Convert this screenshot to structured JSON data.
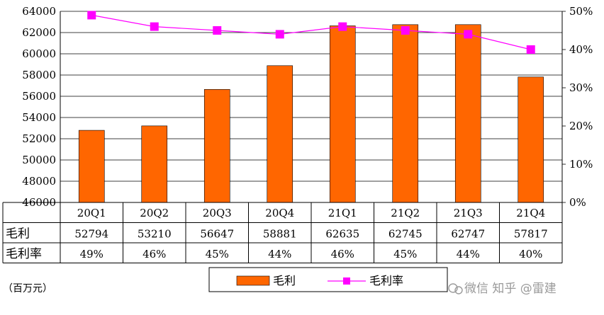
{
  "chart_data": {
    "type": "bar",
    "categories": [
      "20Q1",
      "20Q2",
      "20Q3",
      "20Q4",
      "21Q1",
      "21Q2",
      "21Q3",
      "21Q4"
    ],
    "series": [
      {
        "name": "毛利",
        "type": "bar",
        "axis": "left",
        "values": [
          52794,
          53210,
          56647,
          58881,
          62635,
          62745,
          62747,
          57817
        ],
        "color": "#ff6600"
      },
      {
        "name": "毛利率",
        "type": "line",
        "axis": "right",
        "values": [
          49,
          46,
          45,
          44,
          46,
          45,
          44,
          40
        ],
        "display": [
          "49%",
          "46%",
          "45%",
          "44%",
          "46%",
          "45%",
          "44%",
          "40%"
        ],
        "color": "#ff00ff"
      }
    ],
    "left_axis": {
      "min": 46000,
      "max": 64000,
      "step": 2000,
      "ticks": [
        "46000",
        "48000",
        "50000",
        "52000",
        "54000",
        "56000",
        "58000",
        "60000",
        "62000",
        "64000"
      ]
    },
    "right_axis": {
      "min": 0,
      "max": 50,
      "step": 10,
      "ticks": [
        "0%",
        "10%",
        "20%",
        "30%",
        "40%",
        "50%"
      ]
    },
    "table_rows": [
      {
        "label": "毛利",
        "values": [
          "52794",
          "53210",
          "56647",
          "58881",
          "62635",
          "62745",
          "62747",
          "57817"
        ]
      },
      {
        "label": "毛利率",
        "values": [
          "49%",
          "46%",
          "45%",
          "44%",
          "46%",
          "45%",
          "44%",
          "40%"
        ]
      }
    ],
    "unit_label": "（百万元）",
    "grid": true,
    "legend_position": "bottom"
  },
  "watermark": "微信 知乎 @雷建"
}
